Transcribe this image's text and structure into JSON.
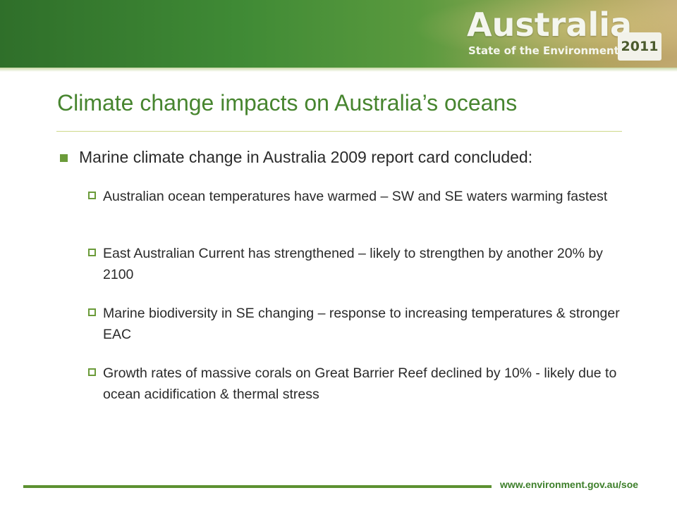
{
  "brand": {
    "title": "Australia",
    "subtitle": "State of the Environment",
    "year": "2011"
  },
  "slide": {
    "title": "Climate change impacts on Australia’s oceans",
    "bullet": "Marine climate change in Australia 2009 report card concluded:",
    "subbullets": [
      "Australian ocean temperatures have warmed – SW and SE waters warming fastest",
      "East Australian Current has strengthened – likely to strengthen by another 20% by 2100",
      "Marine biodiversity in SE changing – response to increasing temperatures & stronger EAC",
      "Growth rates of massive corals on Great Barrier Reef declined by 10% - likely due to ocean acidification & thermal stress"
    ]
  },
  "footer": {
    "url": "www.environment.gov.au/soe"
  },
  "colors": {
    "accent_green": "#47852f",
    "bullet_green": "#6b9b3a",
    "footer_green": "#3d7f2a"
  }
}
